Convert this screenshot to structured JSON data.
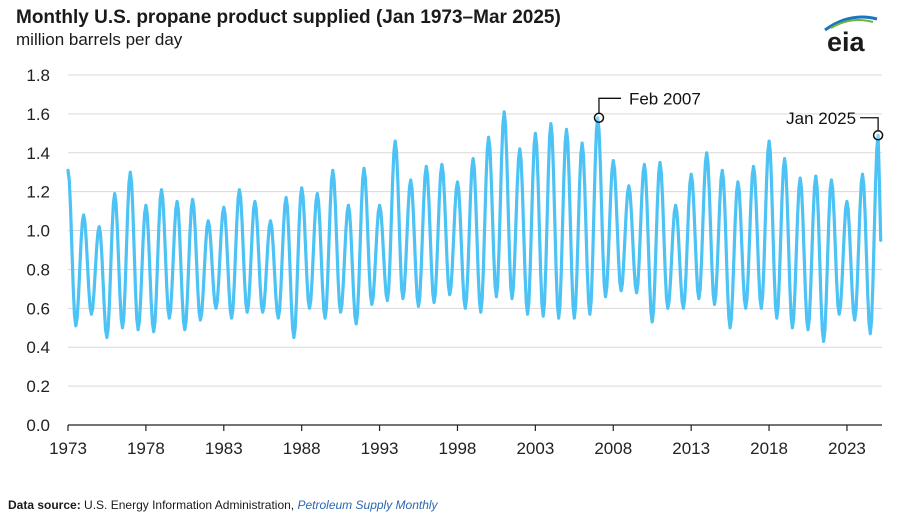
{
  "header": {
    "title": "Monthly U.S. propane product supplied (Jan 1973–Mar 2025)",
    "subtitle": "million barrels per day",
    "logo_text": "eia"
  },
  "footer": {
    "source_label": "Data source:",
    "source_org": "U.S. Energy Information Administration,",
    "source_pub": "Petroleum Supply Monthly"
  },
  "colors": {
    "series": "#4dc3f5",
    "grid": "#d9d9d9",
    "axis": "#222222",
    "logo_blue": "#1b75bc",
    "logo_green": "#6bb43f",
    "source_link": "#2a67b2"
  },
  "chart_data": {
    "type": "line",
    "title": "Monthly U.S. propane product supplied (Jan 1973–Mar 2025)",
    "ylabel": "million barrels per day",
    "xlim": [
      1973.0,
      2025.25
    ],
    "ylim": [
      0,
      1.8
    ],
    "yticks": [
      0.0,
      0.2,
      0.4,
      0.6,
      0.8,
      1.0,
      1.2,
      1.4,
      1.6,
      1.8
    ],
    "xticks": [
      1973,
      1978,
      1983,
      1988,
      1993,
      1998,
      2003,
      2008,
      2013,
      2018,
      2023
    ],
    "grid": true,
    "legend": "none",
    "winter_peaks": [
      [
        1973,
        1.31
      ],
      [
        1974,
        1.08
      ],
      [
        1975,
        1.02
      ],
      [
        1976,
        1.19
      ],
      [
        1977,
        1.3
      ],
      [
        1978,
        1.13
      ],
      [
        1979,
        1.21
      ],
      [
        1980,
        1.15
      ],
      [
        1981,
        1.16
      ],
      [
        1982,
        1.05
      ],
      [
        1983,
        1.12
      ],
      [
        1984,
        1.21
      ],
      [
        1985,
        1.15
      ],
      [
        1986,
        1.05
      ],
      [
        1987,
        1.17
      ],
      [
        1988,
        1.22
      ],
      [
        1989,
        1.19
      ],
      [
        1990,
        1.31
      ],
      [
        1991,
        1.13
      ],
      [
        1992,
        1.32
      ],
      [
        1993,
        1.13
      ],
      [
        1994,
        1.46
      ],
      [
        1995,
        1.26
      ],
      [
        1996,
        1.33
      ],
      [
        1997,
        1.34
      ],
      [
        1998,
        1.25
      ],
      [
        1999,
        1.37
      ],
      [
        2000,
        1.48
      ],
      [
        2001,
        1.61
      ],
      [
        2002,
        1.42
      ],
      [
        2003,
        1.5
      ],
      [
        2004,
        1.55
      ],
      [
        2005,
        1.52
      ],
      [
        2006,
        1.45
      ],
      [
        2007,
        1.58
      ],
      [
        2008,
        1.36
      ],
      [
        2009,
        1.23
      ],
      [
        2010,
        1.34
      ],
      [
        2011,
        1.35
      ],
      [
        2012,
        1.13
      ],
      [
        2013,
        1.29
      ],
      [
        2014,
        1.4
      ],
      [
        2015,
        1.31
      ],
      [
        2016,
        1.25
      ],
      [
        2017,
        1.33
      ],
      [
        2018,
        1.46
      ],
      [
        2019,
        1.37
      ],
      [
        2020,
        1.27
      ],
      [
        2021,
        1.28
      ],
      [
        2022,
        1.26
      ],
      [
        2023,
        1.15
      ],
      [
        2024,
        1.29
      ],
      [
        2025,
        1.49
      ]
    ],
    "summer_troughs": [
      [
        1973,
        0.51
      ],
      [
        1974,
        0.57
      ],
      [
        1975,
        0.45
      ],
      [
        1976,
        0.5
      ],
      [
        1977,
        0.49
      ],
      [
        1978,
        0.48
      ],
      [
        1979,
        0.55
      ],
      [
        1980,
        0.49
      ],
      [
        1981,
        0.54
      ],
      [
        1982,
        0.6
      ],
      [
        1983,
        0.55
      ],
      [
        1984,
        0.58
      ],
      [
        1985,
        0.58
      ],
      [
        1986,
        0.55
      ],
      [
        1987,
        0.45
      ],
      [
        1988,
        0.6
      ],
      [
        1989,
        0.55
      ],
      [
        1990,
        0.58
      ],
      [
        1991,
        0.52
      ],
      [
        1992,
        0.62
      ],
      [
        1993,
        0.64
      ],
      [
        1994,
        0.65
      ],
      [
        1995,
        0.61
      ],
      [
        1996,
        0.63
      ],
      [
        1997,
        0.67
      ],
      [
        1998,
        0.6
      ],
      [
        1999,
        0.58
      ],
      [
        2000,
        0.66
      ],
      [
        2001,
        0.65
      ],
      [
        2002,
        0.57
      ],
      [
        2003,
        0.56
      ],
      [
        2004,
        0.55
      ],
      [
        2005,
        0.55
      ],
      [
        2006,
        0.57
      ],
      [
        2007,
        0.66
      ],
      [
        2008,
        0.69
      ],
      [
        2009,
        0.68
      ],
      [
        2010,
        0.53
      ],
      [
        2011,
        0.6
      ],
      [
        2012,
        0.6
      ],
      [
        2013,
        0.65
      ],
      [
        2014,
        0.62
      ],
      [
        2015,
        0.5
      ],
      [
        2016,
        0.6
      ],
      [
        2017,
        0.6
      ],
      [
        2018,
        0.55
      ],
      [
        2019,
        0.5
      ],
      [
        2020,
        0.49
      ],
      [
        2021,
        0.43
      ],
      [
        2022,
        0.57
      ],
      [
        2023,
        0.54
      ],
      [
        2024,
        0.47
      ]
    ],
    "annotations": [
      {
        "label": "Feb 2007",
        "x": 2007.083,
        "y": 1.58
      },
      {
        "label": "Jan 2025",
        "x": 2025.0,
        "y": 1.49
      }
    ]
  }
}
